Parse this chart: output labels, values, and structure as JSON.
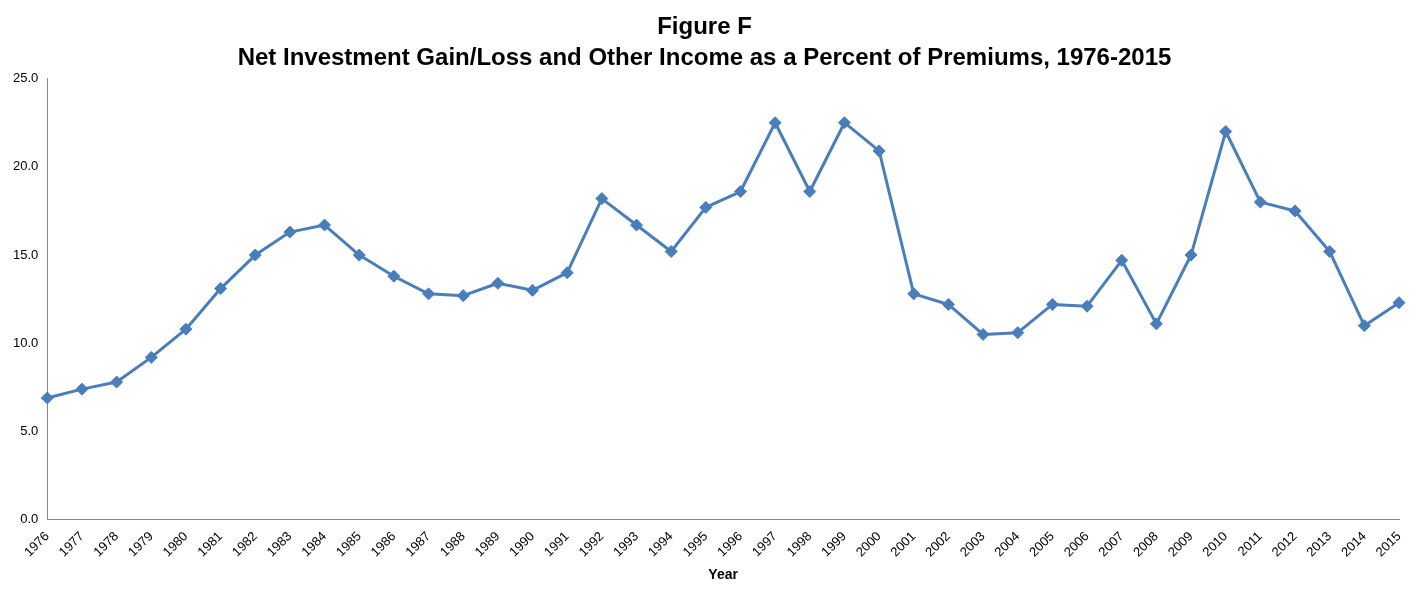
{
  "chart_data": {
    "type": "line",
    "title": "Figure F",
    "subtitle": "Net Investment Gain/Loss and Other Income as a Percent of Premiums, 1976-2015",
    "xlabel": "Year",
    "categories": [
      "1976",
      "1977",
      "1978",
      "1979",
      "1980",
      "1981",
      "1982",
      "1983",
      "1984",
      "1985",
      "1986",
      "1987",
      "1988",
      "1989",
      "1990",
      "1991",
      "1992",
      "1993",
      "1994",
      "1995",
      "1996",
      "1997",
      "1998",
      "1999",
      "2000",
      "2001",
      "2002",
      "2003",
      "2004",
      "2005",
      "2006",
      "2007",
      "2008",
      "2009",
      "2010",
      "2011",
      "2012",
      "2013",
      "2014",
      "2015"
    ],
    "series": [
      {
        "color": "#4a7ebb",
        "values": [
          6.9,
          7.4,
          7.8,
          9.2,
          10.8,
          13.1,
          15.0,
          16.3,
          16.7,
          15.0,
          13.8,
          12.8,
          12.7,
          13.4,
          13.0,
          14.0,
          18.2,
          16.7,
          15.2,
          17.7,
          18.6,
          22.5,
          18.6,
          22.5,
          20.9,
          12.8,
          12.2,
          10.5,
          10.6,
          12.2,
          12.1,
          14.7,
          11.1,
          15.0,
          22.0,
          18.0,
          17.5,
          15.2,
          11.0,
          12.3
        ]
      }
    ],
    "ylim": [
      0,
      25
    ],
    "yticks": [
      {
        "value": 0,
        "label": "0.0"
      },
      {
        "value": 5,
        "label": "5.0"
      },
      {
        "value": 10,
        "label": "10.0"
      },
      {
        "value": 15,
        "label": "15.0"
      },
      {
        "value": 20,
        "label": "20.0"
      },
      {
        "value": 25,
        "label": "25.0"
      }
    ],
    "grid": false,
    "legend": false,
    "marker": "diamond",
    "line_style": "solid"
  }
}
